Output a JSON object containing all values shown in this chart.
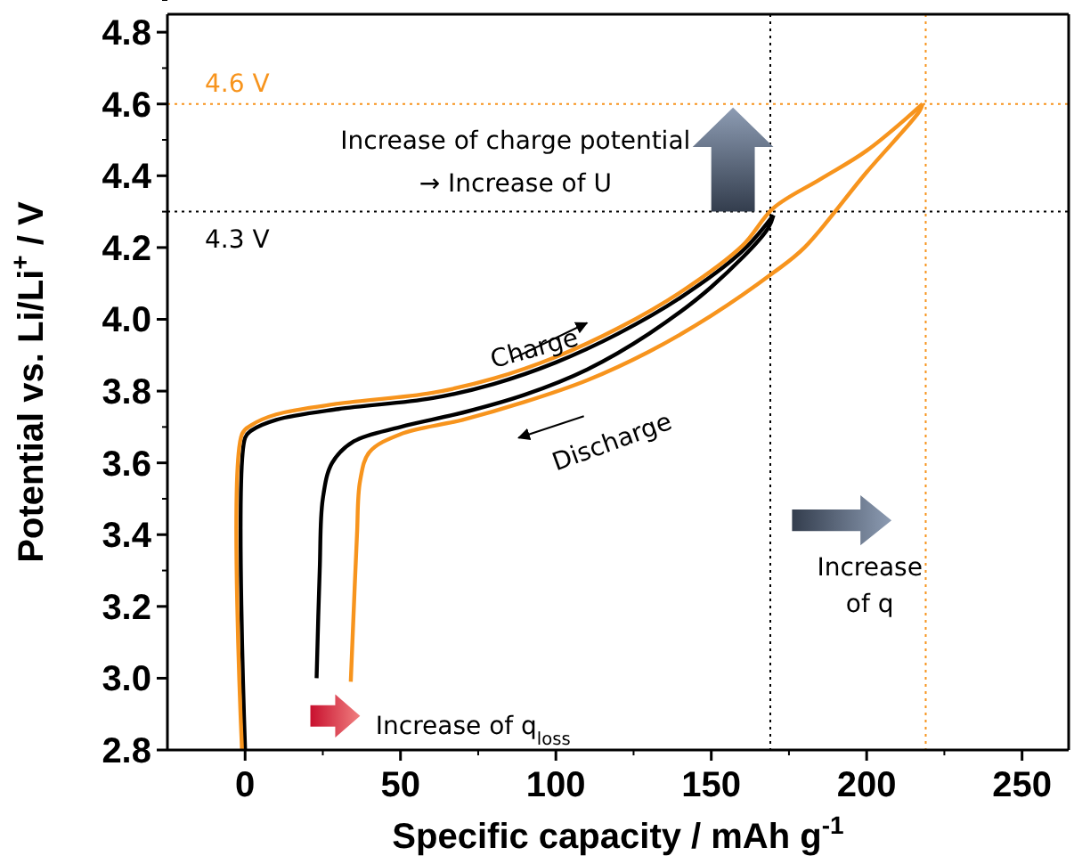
{
  "chart_data": {
    "type": "line",
    "xlabel": "Specific capacity / mAh g$^{-1}$",
    "ylabel": "Potential vs. Li/Li$^{+}$ / V",
    "xlim": [
      -25,
      265
    ],
    "ylim": [
      2.8,
      4.85
    ],
    "xticks": [
      0,
      50,
      100,
      150,
      200,
      250
    ],
    "yticks": [
      2.8,
      {
        "value": 3,
        "label": "3.0"
      },
      3.2,
      3.4,
      3.6,
      3.8,
      {
        "value": 4,
        "label": "4.0"
      },
      4.2,
      4.4,
      4.6,
      4.8
    ],
    "grid": false,
    "line_style": "solid",
    "series": [
      {
        "color": "#000000",
        "x": [
          0,
          0,
          2,
          10,
          30,
          60,
          80,
          100,
          120,
          140,
          160,
          170
        ],
        "values": [
          2.8,
          3.67,
          3.69,
          3.72,
          3.75,
          3.78,
          3.82,
          3.88,
          3.96,
          4.06,
          4.19,
          4.29
        ]
      },
      {
        "color": "#000000",
        "x": [
          170,
          168,
          150,
          130,
          110,
          90,
          70,
          50,
          35,
          28,
          25,
          24,
          23
        ],
        "values": [
          4.29,
          4.25,
          4.09,
          3.96,
          3.86,
          3.79,
          3.74,
          3.7,
          3.66,
          3.6,
          3.5,
          3.3,
          3.0
        ]
      },
      {
        "color": "#f7941d",
        "x": [
          -1,
          -1,
          2,
          10,
          30,
          60,
          80,
          100,
          120,
          140,
          160,
          170,
          185,
          200,
          218
        ],
        "values": [
          2.8,
          3.68,
          3.705,
          3.735,
          3.765,
          3.795,
          3.835,
          3.895,
          3.975,
          4.075,
          4.205,
          4.31,
          4.39,
          4.47,
          4.6
        ]
      },
      {
        "color": "#f7941d",
        "x": [
          218,
          217,
          200,
          180,
          170,
          150,
          130,
          110,
          90,
          70,
          50,
          40,
          37,
          36,
          35,
          34
        ],
        "values": [
          4.6,
          4.58,
          4.41,
          4.2,
          4.13,
          4.01,
          3.91,
          3.83,
          3.77,
          3.72,
          3.68,
          3.63,
          3.55,
          3.4,
          3.2,
          2.99
        ]
      }
    ],
    "ref_lines": [
      {
        "axis": "y",
        "value": 4.6,
        "label": "4.6 V",
        "color": "#f7941d",
        "line_style": "dotted"
      },
      {
        "axis": "y",
        "value": 4.3,
        "label": "4.3 V",
        "color": "#000000",
        "line_style": "dotted"
      },
      {
        "axis": "x",
        "value": 169,
        "color": "#000000",
        "line_style": "dotted"
      },
      {
        "axis": "x",
        "value": 219,
        "color": "#f7941d",
        "line_style": "dotted"
      }
    ],
    "annotations": [
      "Increase of charge potential",
      "→ Increase of U",
      "Charge",
      "Discharge",
      "Increase",
      "of q",
      "Increase of q$_{loss}$"
    ]
  }
}
